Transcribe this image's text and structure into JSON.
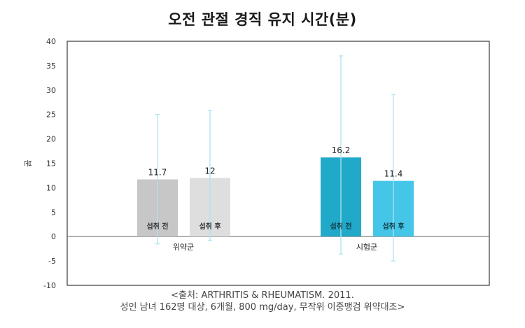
{
  "chart_data": {
    "type": "bar",
    "title": "오전 관절 경직 유지 시간(분)",
    "ylabel": "분",
    "ylim": [
      -10,
      40
    ],
    "yticks": [
      40,
      35,
      30,
      25,
      20,
      15,
      10,
      5,
      0,
      -5,
      -10
    ],
    "categories": [
      "위약군",
      "시험군"
    ],
    "bars": [
      {
        "group": "위약군",
        "label": "섭취 전",
        "value": 11.7,
        "value_label": "11.7",
        "err_low": -1.5,
        "err_high": 25,
        "color": "#c7c7c7"
      },
      {
        "group": "위약군",
        "label": "섭취 후",
        "value": 12,
        "value_label": "12",
        "err_low": -0.8,
        "err_high": 25.8,
        "color": "#dedede"
      },
      {
        "group": "시험군",
        "label": "섭취 전",
        "value": 16.2,
        "value_label": "16.2",
        "err_low": -3.6,
        "err_high": 37,
        "color": "#21a9c9"
      },
      {
        "group": "시험군",
        "label": "섭취 후",
        "value": 11.4,
        "value_label": "11.4",
        "err_low": -5,
        "err_high": 29.1,
        "color": "#45c6e8"
      }
    ],
    "error_bar_color": "#aee3ef",
    "grid": false
  },
  "source": {
    "line1": "<출처: ARTHRITIS & RHEUMATISM. 2011.",
    "line2": "성인 남녀 162명 대상, 6개월, 800 mg/day, 무작위 이중맹검 위약대조>"
  }
}
